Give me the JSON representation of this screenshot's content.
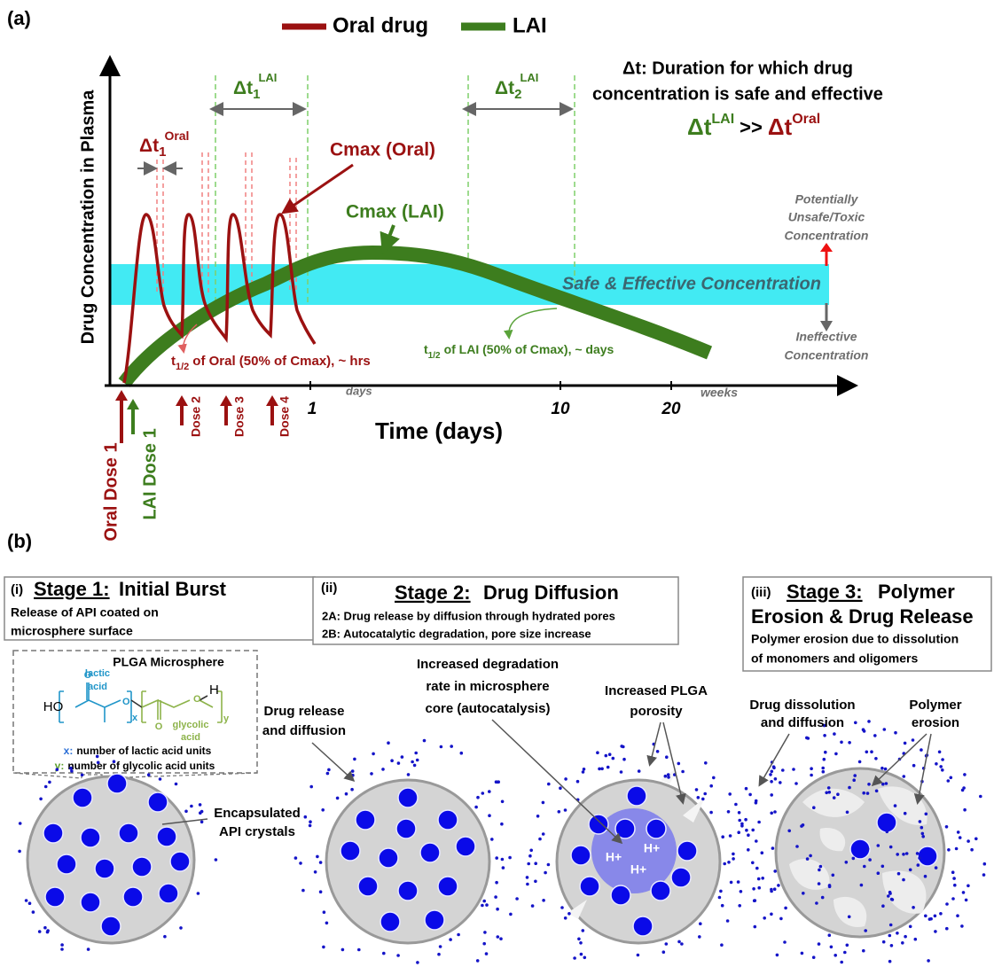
{
  "panel_a": {
    "label": "(a)",
    "legend": [
      "Oral drug",
      "LAI"
    ],
    "y_axis_label": "Drug Concentration in Plasma",
    "x_axis_label": "Time (days)",
    "x_tick_labels": [
      "1",
      "10",
      "20"
    ],
    "x_unit_labels": [
      "days",
      "weeks"
    ],
    "definition": [
      "Δt: Duration for which drug",
      "concentration is safe and effective"
    ],
    "comparison": {
      "left_symbol": "Δt",
      "left_superscript": "LAI",
      "operator": ">>",
      "right_symbol": "Δt",
      "right_superscript": "Oral"
    },
    "intervals": [
      {
        "symbol": "Δt",
        "subscript": "1",
        "superscript": "Oral"
      },
      {
        "symbol": "Δt",
        "subscript": "1",
        "superscript": "LAI"
      },
      {
        "symbol": "Δt",
        "subscript": "2",
        "superscript": "LAI"
      }
    ],
    "cmax_oral": "Cmax (Oral)",
    "cmax_lai": "Cmax (LAI)",
    "toxic_label": [
      "Potentially",
      "Unsafe/Toxic",
      "Concentration"
    ],
    "safe_label": "Safe & Effective Concentration",
    "ineffective_label": [
      "Ineffective",
      "Concentration"
    ],
    "half_life_oral": {
      "symbol": "t",
      "subscript": "1/2",
      "text": "of Oral (50% of Cmax), ~ hrs"
    },
    "half_life_lai": {
      "symbol": "t",
      "subscript": "1/2",
      "text": "of LAI (50% of Cmax), ~ days"
    },
    "doses": [
      "Oral Dose 1",
      "LAI Dose 1",
      "Dose 2",
      "Dose 3",
      "Dose 4"
    ]
  },
  "panel_b": {
    "label": "(b)",
    "stage1": {
      "number": "(i)",
      "title": "Stage 1:",
      "subtitle": "Initial Burst",
      "description": [
        "Release of API coated on",
        "microsphere surface"
      ]
    },
    "plga": {
      "title": "PLGA Microsphere",
      "lactic": [
        "lactic",
        "acid"
      ],
      "glycolic": [
        "glycolic",
        "acid"
      ],
      "atoms": {
        "ho": "HO",
        "o1": "O",
        "o2": "O",
        "o3": "O",
        "o4": "O",
        "h": "H",
        "x": "x",
        "y": "y"
      },
      "legend": [
        {
          "key": "x:",
          "text": "number of lactic acid units"
        },
        {
          "key": "y:",
          "text": "number of glycolic acid units"
        }
      ]
    },
    "encapsulated": [
      "Encapsulated",
      "API crystals"
    ],
    "stage2": {
      "number": "(ii)",
      "title": "Stage 2:",
      "subtitle": "Drug Diffusion",
      "description": [
        "2A: Drug release by diffusion through hydrated pores",
        "2B: Autocatalytic degradation, pore size increase"
      ]
    },
    "drug_release": [
      "Drug release",
      "and diffusion"
    ],
    "degradation": [
      "Increased degradation",
      "rate in microsphere",
      "core (autocatalysis)"
    ],
    "porosity": [
      "Increased PLGA",
      "porosity"
    ],
    "protons": [
      "H+",
      "H+",
      "H+"
    ],
    "stage3": {
      "number": "(iii)",
      "title": "Stage 3:",
      "subtitle": [
        "Polymer",
        "Erosion & Drug Release"
      ],
      "description": [
        "Polymer erosion due to dissolution",
        "of monomers and oligomers"
      ]
    },
    "dissolution": [
      "Drug dissolution",
      "and diffusion"
    ],
    "erosion": [
      "Polymer",
      "erosion"
    ]
  }
}
